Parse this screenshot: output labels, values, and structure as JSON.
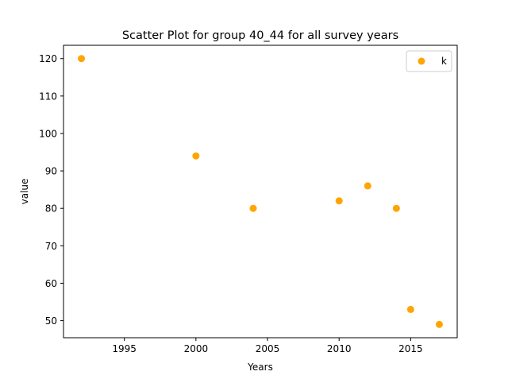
{
  "chart_data": {
    "type": "scatter",
    "title": "Scatter Plot for group 40_44 for all survey years",
    "xlabel": "Years",
    "ylabel": "value",
    "xlim": [
      1990.75,
      2018.25
    ],
    "ylim": [
      45.45,
      123.55
    ],
    "x_ticks": [
      1995,
      2000,
      2005,
      2010,
      2015
    ],
    "y_ticks": [
      50,
      60,
      70,
      80,
      90,
      100,
      110,
      120
    ],
    "grid": false,
    "legend_position": "top-right",
    "series": [
      {
        "name": "k",
        "color": "#FFA500",
        "points": [
          {
            "x": 1992,
            "y": 120
          },
          {
            "x": 2000,
            "y": 94
          },
          {
            "x": 2004,
            "y": 80
          },
          {
            "x": 2010,
            "y": 82
          },
          {
            "x": 2012,
            "y": 86
          },
          {
            "x": 2014,
            "y": 80
          },
          {
            "x": 2015,
            "y": 53
          },
          {
            "x": 2017,
            "y": 49
          }
        ]
      }
    ]
  }
}
